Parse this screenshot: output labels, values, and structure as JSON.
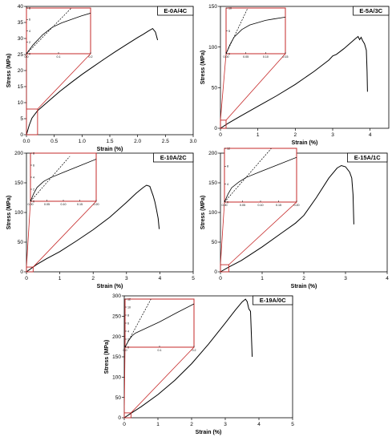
{
  "chart_data": [
    {
      "type": "line",
      "label": "E-0A/4C",
      "xlabel": "Strain (%)",
      "ylabel": "Stress (MPa)",
      "xlim": [
        0,
        3.0
      ],
      "ylim": [
        0,
        40
      ],
      "xticks": [
        "0.0",
        "0.5",
        "1.0",
        "1.5",
        "2.0",
        "2.5",
        "3.0"
      ],
      "yticks": [
        "0",
        "5",
        "10",
        "15",
        "20",
        "25",
        "30",
        "35",
        "40"
      ],
      "series": [
        {
          "x": [
            0,
            0.05,
            0.1,
            0.2,
            0.4,
            0.6,
            0.8,
            1.0,
            1.2,
            1.4,
            1.6,
            1.8,
            2.0,
            2.1,
            2.2,
            2.27,
            2.32,
            2.36
          ],
          "y": [
            0,
            3,
            5.2,
            7.5,
            10.5,
            13.5,
            16.2,
            18.8,
            21.2,
            23.6,
            25.9,
            28.1,
            30.3,
            31.3,
            32.4,
            33.1,
            32.0,
            29.5
          ]
        }
      ],
      "inset": {
        "xlim": [
          0,
          0.2
        ],
        "ylim": [
          0,
          8
        ],
        "xticks": [
          "0.0",
          "0.1",
          "0.2"
        ],
        "yticks": [
          "0",
          "2",
          "4",
          "6",
          "8"
        ],
        "curve": {
          "x": [
            0,
            0.02,
            0.05,
            0.08,
            0.11,
            0.14,
            0.17,
            0.2
          ],
          "y": [
            0,
            1.5,
            3.3,
            4.6,
            5.4,
            6.0,
            6.6,
            7.1
          ]
        },
        "tangent": {
          "x": [
            0,
            0.14
          ],
          "y": [
            0,
            8
          ]
        }
      }
    },
    {
      "type": "line",
      "label": "E-5A/3C",
      "xlabel": "Strain (%)",
      "ylabel": "Stress (MPa)",
      "xlim": [
        0,
        4.5
      ],
      "ylim": [
        0,
        150
      ],
      "xticks": [
        "0",
        "1",
        "2",
        "3",
        "4"
      ],
      "yticks": [
        "0",
        "50",
        "100",
        "150"
      ],
      "series": [
        {
          "x": [
            0,
            0.2,
            0.5,
            1.0,
            1.5,
            2.0,
            2.5,
            2.9,
            3.0,
            3.1,
            3.3,
            3.5,
            3.6,
            3.68,
            3.72,
            3.76,
            3.8,
            3.85,
            3.9,
            3.92,
            3.93
          ],
          "y": [
            0,
            6,
            14,
            27,
            40,
            54,
            70,
            84,
            89,
            91,
            98,
            106,
            110,
            113,
            109,
            112,
            108,
            104,
            96,
            70,
            45
          ]
        }
      ],
      "inset": {
        "xlim": [
          0,
          0.15
        ],
        "ylim": [
          0,
          10
        ],
        "xticks": [
          "0.00",
          "0.05",
          "0.10",
          "0.15"
        ],
        "yticks": [
          "0",
          "5",
          "10"
        ],
        "curve": {
          "x": [
            0,
            0.01,
            0.02,
            0.04,
            0.06,
            0.08,
            0.1,
            0.12,
            0.15
          ],
          "y": [
            0,
            2,
            3.6,
            5.3,
            6.3,
            6.8,
            7.3,
            7.6,
            8.0
          ]
        },
        "tangent": {
          "x": [
            0,
            0.055
          ],
          "y": [
            0,
            10
          ]
        }
      }
    },
    {
      "type": "line",
      "label": "E-10A/2C",
      "xlabel": "Strain (%)",
      "ylabel": "Stress (MPa)",
      "xlim": [
        0,
        5
      ],
      "ylim": [
        0,
        200
      ],
      "xticks": [
        "0",
        "1",
        "2",
        "3",
        "4",
        "5"
      ],
      "yticks": [
        "0",
        "50",
        "100",
        "150",
        "200"
      ],
      "series": [
        {
          "x": [
            0,
            0.3,
            0.6,
            1.0,
            1.5,
            2.0,
            2.5,
            3.0,
            3.3,
            3.5,
            3.6,
            3.7,
            3.8,
            3.85,
            3.9,
            3.95,
            3.98
          ],
          "y": [
            0,
            12,
            22,
            34,
            52,
            71,
            92,
            117,
            133,
            142,
            146,
            144,
            128,
            118,
            105,
            90,
            72
          ]
        }
      ],
      "inset": {
        "xlim": [
          0,
          0.2
        ],
        "ylim": [
          0,
          8
        ],
        "xticks": [
          "0.00",
          "0.05",
          "0.10",
          "0.15",
          "0.20"
        ],
        "yticks": [
          "0",
          "2",
          "4",
          "6",
          "8"
        ],
        "curve": {
          "x": [
            0,
            0.01,
            0.02,
            0.04,
            0.06,
            0.1,
            0.15,
            0.2
          ],
          "y": [
            0,
            1.3,
            2.3,
            3.3,
            3.9,
            4.8,
            5.9,
            7.0
          ]
        },
        "tangent": {
          "x": [
            0,
            0.12
          ],
          "y": [
            0,
            7.5
          ]
        }
      }
    },
    {
      "type": "line",
      "label": "E-15A/1C",
      "xlabel": "Strain (%)",
      "ylabel": "Stress (MPa)",
      "xlim": [
        0,
        4
      ],
      "ylim": [
        0,
        200
      ],
      "xticks": [
        "0",
        "1",
        "2",
        "3",
        "4"
      ],
      "yticks": [
        "0",
        "50",
        "100",
        "150",
        "200"
      ],
      "series": [
        {
          "x": [
            0,
            0.2,
            0.5,
            1.0,
            1.5,
            1.8,
            2.0,
            2.3,
            2.6,
            2.8,
            2.9,
            3.0,
            3.1,
            3.15,
            3.18,
            3.2
          ],
          "y": [
            0,
            8,
            19,
            42,
            67,
            82,
            95,
            125,
            158,
            175,
            179,
            177,
            168,
            158,
            130,
            80
          ]
        }
      ],
      "inset": {
        "xlim": [
          0,
          0.2
        ],
        "ylim": [
          0,
          12
        ],
        "xticks": [
          "0.00",
          "0.05",
          "0.10",
          "0.15",
          "0.20"
        ],
        "yticks": [
          "0",
          "4",
          "8",
          "12"
        ],
        "curve": {
          "x": [
            0,
            0.01,
            0.02,
            0.04,
            0.06,
            0.1,
            0.15,
            0.2
          ],
          "y": [
            0,
            1.8,
            3.2,
            4.5,
            5.5,
            6.8,
            8.4,
            10.0
          ]
        },
        "tangent": {
          "x": [
            0,
            0.13
          ],
          "y": [
            0,
            12
          ]
        }
      }
    },
    {
      "type": "line",
      "label": "E-19A/0C",
      "xlabel": "Strain (%)",
      "ylabel": "Stress (MPa)",
      "xlim": [
        0,
        5
      ],
      "ylim": [
        0,
        300
      ],
      "xticks": [
        "0",
        "1",
        "2",
        "3",
        "4",
        "5"
      ],
      "yticks": [
        "0",
        "50",
        "100",
        "150",
        "200",
        "250",
        "300"
      ],
      "series": [
        {
          "x": [
            0,
            0.2,
            0.5,
            1.0,
            1.5,
            2.0,
            2.5,
            3.0,
            3.3,
            3.5,
            3.6,
            3.65,
            3.7,
            3.75,
            3.8
          ],
          "y": [
            0,
            11,
            27,
            57,
            92,
            133,
            181,
            233,
            265,
            285,
            292,
            286,
            268,
            262,
            150
          ]
        }
      ],
      "inset": {
        "xlim": [
          0,
          0.2
        ],
        "ylim": [
          0,
          12
        ],
        "xticks": [
          "0.0",
          "0.1",
          "0.2"
        ],
        "yticks": [
          "0",
          "2",
          "4",
          "6",
          "8",
          "10",
          "12"
        ],
        "curve": {
          "x": [
            0,
            0.01,
            0.02,
            0.03,
            0.05,
            0.1,
            0.15,
            0.2
          ],
          "y": [
            0,
            1.6,
            2.8,
            3.5,
            4.3,
            6.3,
            8.6,
            10.8
          ]
        },
        "tangent": {
          "x": [
            0,
            0.075
          ],
          "y": [
            0,
            12
          ]
        }
      }
    }
  ]
}
